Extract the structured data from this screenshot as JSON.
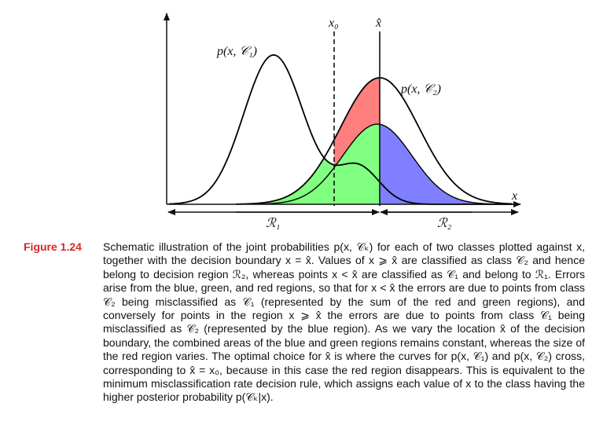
{
  "figure": {
    "labels": {
      "x0": "x₀",
      "xhat": "x̂",
      "x_axis": "x",
      "curve1": "p(x, 𝒞₁)",
      "curve2": "p(x, 𝒞₂)",
      "region1": "ℛ₁",
      "region2": "ℛ₂"
    },
    "colors": {
      "red_region": "#ff7f7f",
      "green_region": "#80ff80",
      "blue_region": "#7f7fff",
      "curve": "#000000"
    }
  },
  "caption": {
    "figure_number": "Figure 1.24",
    "text": "Schematic illustration of the joint probabilities p(x, 𝒞ₖ) for each of two classes plotted against x, together with the decision boundary x = x̂. Values of x ⩾ x̂ are classified as class 𝒞₂ and hence belong to decision region ℛ₂, whereas points x < x̂ are classified as 𝒞₁ and belong to ℛ₁. Errors arise from the blue, green, and red regions, so that for x < x̂ the errors are due to points from class 𝒞₂ being misclassified as 𝒞₁ (represented by the sum of the red and green regions), and conversely for points in the region x ⩾ x̂ the errors are due to points from class 𝒞₁ being misclassified as 𝒞₂ (represented by the blue region). As we vary the location x̂ of the decision boundary, the combined areas of the blue and green regions remains constant, whereas the size of the red region varies. The optimal choice for x̂ is where the curves for p(x, 𝒞₁) and p(x, 𝒞₂) cross, corresponding to x̂ = x₀, because in this case the red region disappears. This is equivalent to the minimum misclassification rate decision rule, which assigns each value of x to the class having the higher posterior probability p(𝒞ₖ|x)."
  }
}
